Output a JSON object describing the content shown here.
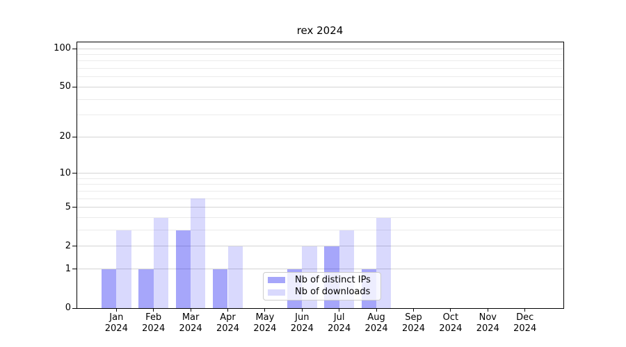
{
  "title": "rex 2024",
  "chart_data": {
    "type": "bar",
    "title": "rex 2024",
    "categories": [
      "Jan 2024",
      "Feb 2024",
      "Mar 2024",
      "Apr 2024",
      "May 2024",
      "Jun 2024",
      "Jul 2024",
      "Aug 2024",
      "Sep 2024",
      "Oct 2024",
      "Nov 2024",
      "Dec 2024"
    ],
    "x_tick_month": [
      "Jan",
      "Feb",
      "Mar",
      "Apr",
      "May",
      "Jun",
      "Jul",
      "Aug",
      "Sep",
      "Oct",
      "Nov",
      "Dec"
    ],
    "x_tick_year": "2024",
    "series": [
      {
        "name": "Nb of distinct IPs",
        "color": "rgba(0,0,240,0.35)",
        "values": [
          1,
          1,
          3,
          1,
          0,
          1,
          2,
          1,
          0,
          0,
          0,
          0
        ]
      },
      {
        "name": "Nb of downloads",
        "color": "rgba(0,0,240,0.15)",
        "values": [
          3,
          4,
          6,
          2,
          0,
          2,
          3,
          4,
          0,
          0,
          0,
          0
        ]
      }
    ],
    "yscale": "log1p",
    "ylim": [
      0,
      113
    ],
    "yticks_major": [
      0,
      1,
      2,
      5,
      10,
      20,
      50,
      100
    ],
    "yticks_minor": [
      3,
      4,
      6,
      7,
      8,
      9,
      30,
      40,
      60,
      70,
      80,
      90
    ],
    "grid": "horizontal",
    "legend_position": "lower center"
  },
  "legend": {
    "items": [
      {
        "label": "Nb of distinct IPs",
        "color": "rgba(0,0,240,0.35)"
      },
      {
        "label": "Nb of downloads",
        "color": "rgba(0,0,240,0.15)"
      }
    ]
  },
  "colors": {
    "grid_major": "#d4d4d4",
    "grid_minor": "#ebebeb",
    "axis": "#000000",
    "legend_border": "#cccccc",
    "legend_background": "rgba(255,255,255,0.8)",
    "text": "#000000",
    "background": "#ffffff"
  }
}
